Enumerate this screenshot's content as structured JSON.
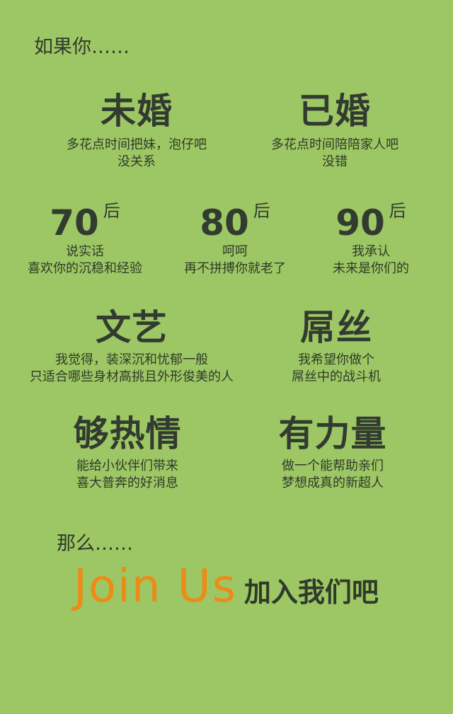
{
  "intro": "如果你……",
  "marital": [
    {
      "title": "未婚",
      "lines": [
        "多花点时间把妹，泡仔吧",
        "没关系"
      ]
    },
    {
      "title": "已婚",
      "lines": [
        "多花点时间陪陪家人吧",
        "没错"
      ]
    }
  ],
  "eras": [
    {
      "num": "70",
      "suffix": "后",
      "lines": [
        "说实话",
        "喜欢你的沉稳和经验"
      ]
    },
    {
      "num": "80",
      "suffix": "后",
      "lines": [
        "呵呵",
        "再不拼搏你就老了"
      ]
    },
    {
      "num": "90",
      "suffix": "后",
      "lines": [
        "我承认",
        "未来是你们的"
      ]
    }
  ],
  "styles": [
    {
      "title": "文艺",
      "lines": [
        "我觉得，装深沉和忧郁一般",
        "只适合哪些身材高挑且外形俊美的人"
      ]
    },
    {
      "title": "屌丝",
      "lines": [
        "我希望你做个",
        "屌丝中的战斗机"
      ]
    }
  ],
  "traits": [
    {
      "title": "够热情",
      "lines": [
        "能给小伙伴们带来",
        "喜大普奔的好消息"
      ]
    },
    {
      "title": "有力量",
      "lines": [
        "做一个能帮助亲们",
        "梦想成真的新超人"
      ]
    }
  ],
  "outro": "那么……",
  "cta": {
    "en": "Join Us",
    "cn": "加入我们吧"
  },
  "colors": {
    "background": "#9dc764",
    "accent": "#ee8a16",
    "text": "#2f3a2a"
  }
}
